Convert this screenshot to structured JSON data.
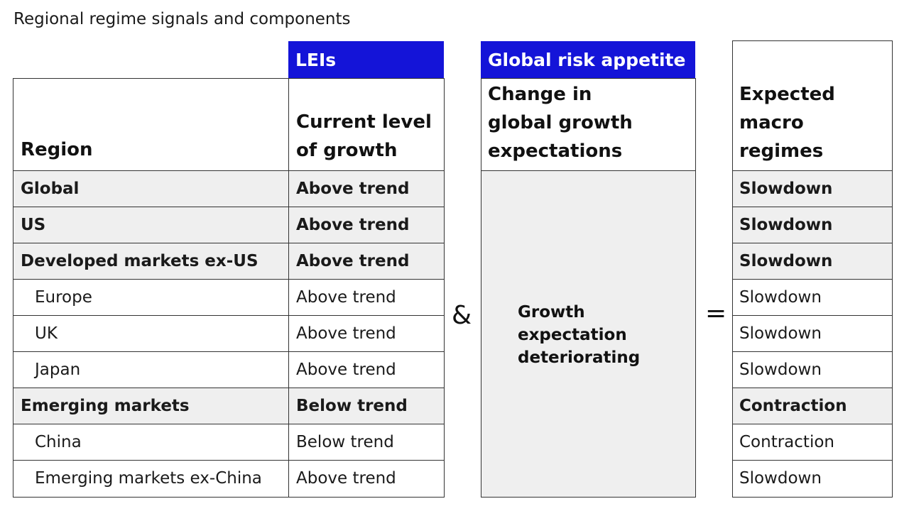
{
  "title": "Regional regime signals and components",
  "headers": {
    "leis": "LEIs",
    "global_risk": "Global risk appetite"
  },
  "columns": {
    "region": "Region",
    "current_growth": [
      "Current level",
      "of growth"
    ],
    "change_expectations": [
      "Change in",
      "global growth",
      "expectations"
    ],
    "expected_regimes": [
      "Expected",
      "macro",
      "regimes"
    ]
  },
  "operators": {
    "and": "&",
    "equals": "="
  },
  "risk_appetite_signal": [
    "Growth",
    "expectation",
    "deteriorating"
  ],
  "rows": [
    {
      "region": "Global",
      "growth": "Above trend",
      "regime": "Slowdown",
      "bold": true
    },
    {
      "region": "US",
      "growth": "Above trend",
      "regime": "Slowdown",
      "bold": true
    },
    {
      "region": "Developed markets ex-US",
      "growth": "Above trend",
      "regime": "Slowdown",
      "bold": true
    },
    {
      "region": "Europe",
      "growth": "Above trend",
      "regime": "Slowdown",
      "bold": false
    },
    {
      "region": "UK",
      "growth": "Above trend",
      "regime": "Slowdown",
      "bold": false
    },
    {
      "region": "Japan",
      "growth": "Above trend",
      "regime": "Slowdown",
      "bold": false
    },
    {
      "region": "Emerging markets",
      "growth": "Below trend",
      "regime": "Contraction",
      "bold": true
    },
    {
      "region": "China",
      "growth": "Below trend",
      "regime": "Contraction",
      "bold": false
    },
    {
      "region": "Emerging markets ex-China",
      "growth": "Above trend",
      "regime": "Slowdown",
      "bold": false
    }
  ]
}
